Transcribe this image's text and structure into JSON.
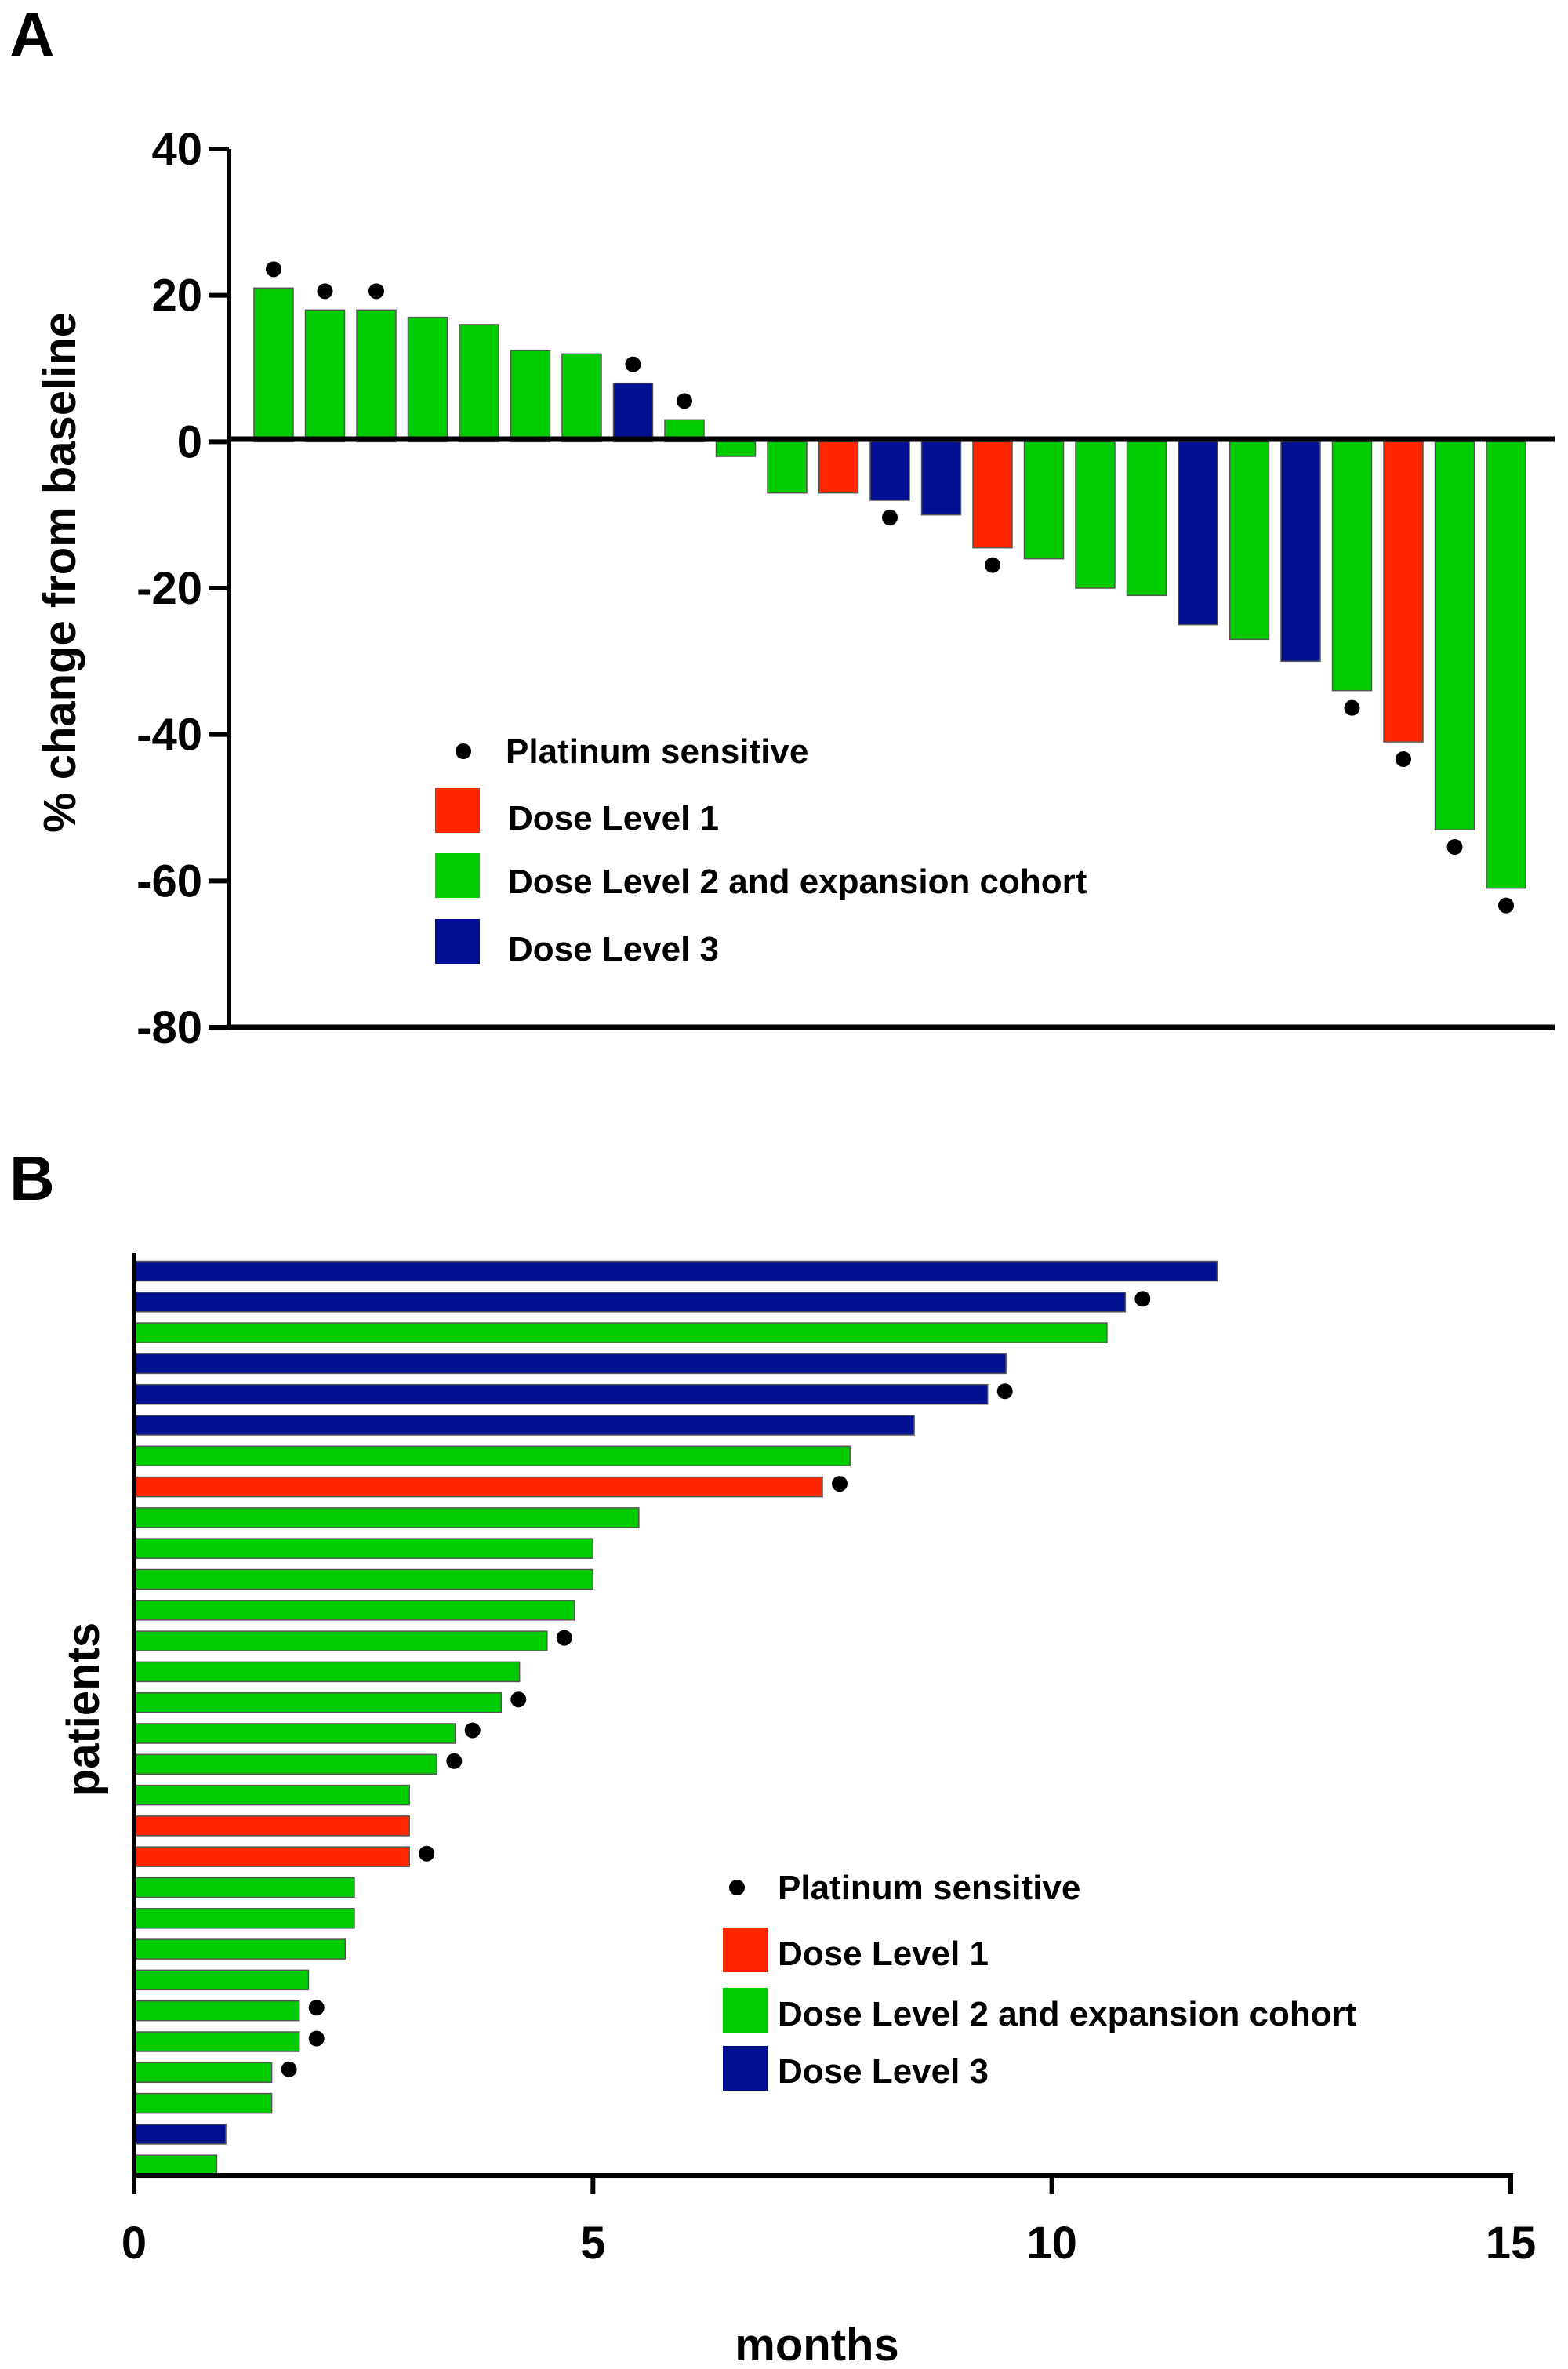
{
  "colors": {
    "dose_level_1": "#ff2600",
    "dose_level_2": "#00cc00",
    "dose_level_3": "#001090",
    "marker": "#000000"
  },
  "legend": {
    "platinum": "Platinum sensitive",
    "dose1": "Dose Level 1",
    "dose2": "Dose Level 2 and expansion cohort",
    "dose3": "Dose Level 3"
  },
  "chart_data": [
    {
      "panel": "A",
      "type": "bar",
      "title": "",
      "xlabel": "",
      "ylabel": "% change from baseline",
      "ylim": [
        -80,
        40
      ],
      "yticks": [
        "40",
        "20",
        "0",
        "-20",
        "-40",
        "-60",
        "-80"
      ],
      "grid": false,
      "legend_position": "lower-left",
      "bars": [
        {
          "value": 21,
          "group": "dose2",
          "platinum": true
        },
        {
          "value": 18,
          "group": "dose2",
          "platinum": true
        },
        {
          "value": 18,
          "group": "dose2",
          "platinum": true
        },
        {
          "value": 17,
          "group": "dose2",
          "platinum": false
        },
        {
          "value": 16,
          "group": "dose2",
          "platinum": false
        },
        {
          "value": 12.5,
          "group": "dose2",
          "platinum": false
        },
        {
          "value": 12,
          "group": "dose2",
          "platinum": false
        },
        {
          "value": 8,
          "group": "dose3",
          "platinum": true
        },
        {
          "value": 3,
          "group": "dose2",
          "platinum": true
        },
        {
          "value": -2,
          "group": "dose2",
          "platinum": false
        },
        {
          "value": -7,
          "group": "dose2",
          "platinum": false
        },
        {
          "value": -7,
          "group": "dose1",
          "platinum": false
        },
        {
          "value": -8,
          "group": "dose3",
          "platinum": true
        },
        {
          "value": -10,
          "group": "dose3",
          "platinum": false
        },
        {
          "value": -14.5,
          "group": "dose1",
          "platinum": true
        },
        {
          "value": -16,
          "group": "dose2",
          "platinum": false
        },
        {
          "value": -20,
          "group": "dose2",
          "platinum": false
        },
        {
          "value": -21,
          "group": "dose2",
          "platinum": false
        },
        {
          "value": -25,
          "group": "dose3",
          "platinum": false
        },
        {
          "value": -27,
          "group": "dose2",
          "platinum": false
        },
        {
          "value": -30,
          "group": "dose3",
          "platinum": false
        },
        {
          "value": -34,
          "group": "dose2",
          "platinum": true
        },
        {
          "value": -41,
          "group": "dose1",
          "platinum": true
        },
        {
          "value": -53,
          "group": "dose2",
          "platinum": true
        },
        {
          "value": -61,
          "group": "dose2",
          "platinum": true
        }
      ]
    },
    {
      "panel": "B",
      "type": "bar",
      "orientation": "horizontal",
      "title": "",
      "xlabel": "months",
      "ylabel": "patients",
      "xlim": [
        0,
        15
      ],
      "xticks": [
        "0",
        "5",
        "10",
        "15"
      ],
      "grid": false,
      "legend_position": "lower-right",
      "bars": [
        {
          "value": 11.8,
          "group": "dose3",
          "platinum": false
        },
        {
          "value": 10.8,
          "group": "dose3",
          "platinum": true
        },
        {
          "value": 10.6,
          "group": "dose2",
          "platinum": false
        },
        {
          "value": 9.5,
          "group": "dose3",
          "platinum": false
        },
        {
          "value": 9.3,
          "group": "dose3",
          "platinum": true
        },
        {
          "value": 8.5,
          "group": "dose3",
          "platinum": false
        },
        {
          "value": 7.8,
          "group": "dose2",
          "platinum": false
        },
        {
          "value": 7.5,
          "group": "dose1",
          "platinum": true
        },
        {
          "value": 5.5,
          "group": "dose2",
          "platinum": false
        },
        {
          "value": 5.0,
          "group": "dose2",
          "platinum": false
        },
        {
          "value": 5.0,
          "group": "dose2",
          "platinum": false
        },
        {
          "value": 4.8,
          "group": "dose2",
          "platinum": false
        },
        {
          "value": 4.5,
          "group": "dose2",
          "platinum": true
        },
        {
          "value": 4.2,
          "group": "dose2",
          "platinum": false
        },
        {
          "value": 4.0,
          "group": "dose2",
          "platinum": true
        },
        {
          "value": 3.5,
          "group": "dose2",
          "platinum": true
        },
        {
          "value": 3.3,
          "group": "dose2",
          "platinum": true
        },
        {
          "value": 3.0,
          "group": "dose2",
          "platinum": false
        },
        {
          "value": 3.0,
          "group": "dose1",
          "platinum": false
        },
        {
          "value": 3.0,
          "group": "dose1",
          "platinum": true
        },
        {
          "value": 2.4,
          "group": "dose2",
          "platinum": false
        },
        {
          "value": 2.4,
          "group": "dose2",
          "platinum": false
        },
        {
          "value": 2.3,
          "group": "dose2",
          "platinum": false
        },
        {
          "value": 1.9,
          "group": "dose2",
          "platinum": false
        },
        {
          "value": 1.8,
          "group": "dose2",
          "platinum": true
        },
        {
          "value": 1.8,
          "group": "dose2",
          "platinum": true
        },
        {
          "value": 1.5,
          "group": "dose2",
          "platinum": true
        },
        {
          "value": 1.5,
          "group": "dose2",
          "platinum": false
        },
        {
          "value": 1.0,
          "group": "dose3",
          "platinum": false
        },
        {
          "value": 0.9,
          "group": "dose2",
          "platinum": false
        }
      ]
    }
  ]
}
